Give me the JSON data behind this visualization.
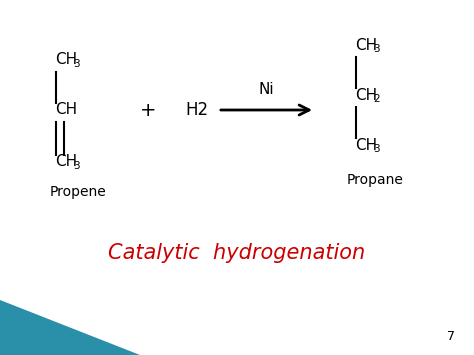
{
  "bg_color": "#ffffff",
  "title_text": "Catalytic  hydrogenation",
  "title_color": "#cc0000",
  "title_fontsize": 15,
  "page_number": "7",
  "propene_label": "Propene",
  "propane_label": "Propane",
  "catalyst_label": "Ni",
  "h2_label": "H2",
  "plus_label": "+",
  "bottom_bar_color": "#2a8fa8",
  "fs_chem": 11,
  "fs_sub": 7.5,
  "fs_label": 10
}
